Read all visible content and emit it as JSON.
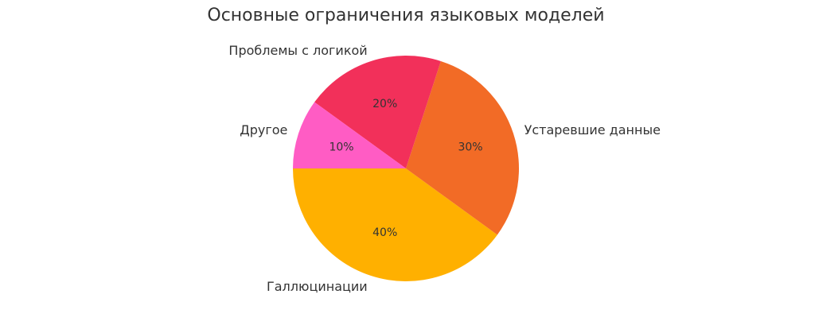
{
  "chart_data": {
    "type": "pie",
    "title": "Основные ограничения языковых моделей",
    "slices": [
      {
        "label": "Галлюцинации",
        "value": 40,
        "pct_label": "40%",
        "color": "#FFB000"
      },
      {
        "label": "Устаревшие данные",
        "value": 30,
        "pct_label": "30%",
        "color": "#F26B26"
      },
      {
        "label": "Проблемы с логикой",
        "value": 20,
        "pct_label": "20%",
        "color": "#F2305A"
      },
      {
        "label": "Другое",
        "value": 10,
        "pct_label": "10%",
        "color": "#FF5CC4"
      }
    ],
    "start_angle_deg": 180,
    "direction": "counterclockwise",
    "legend": "none"
  }
}
